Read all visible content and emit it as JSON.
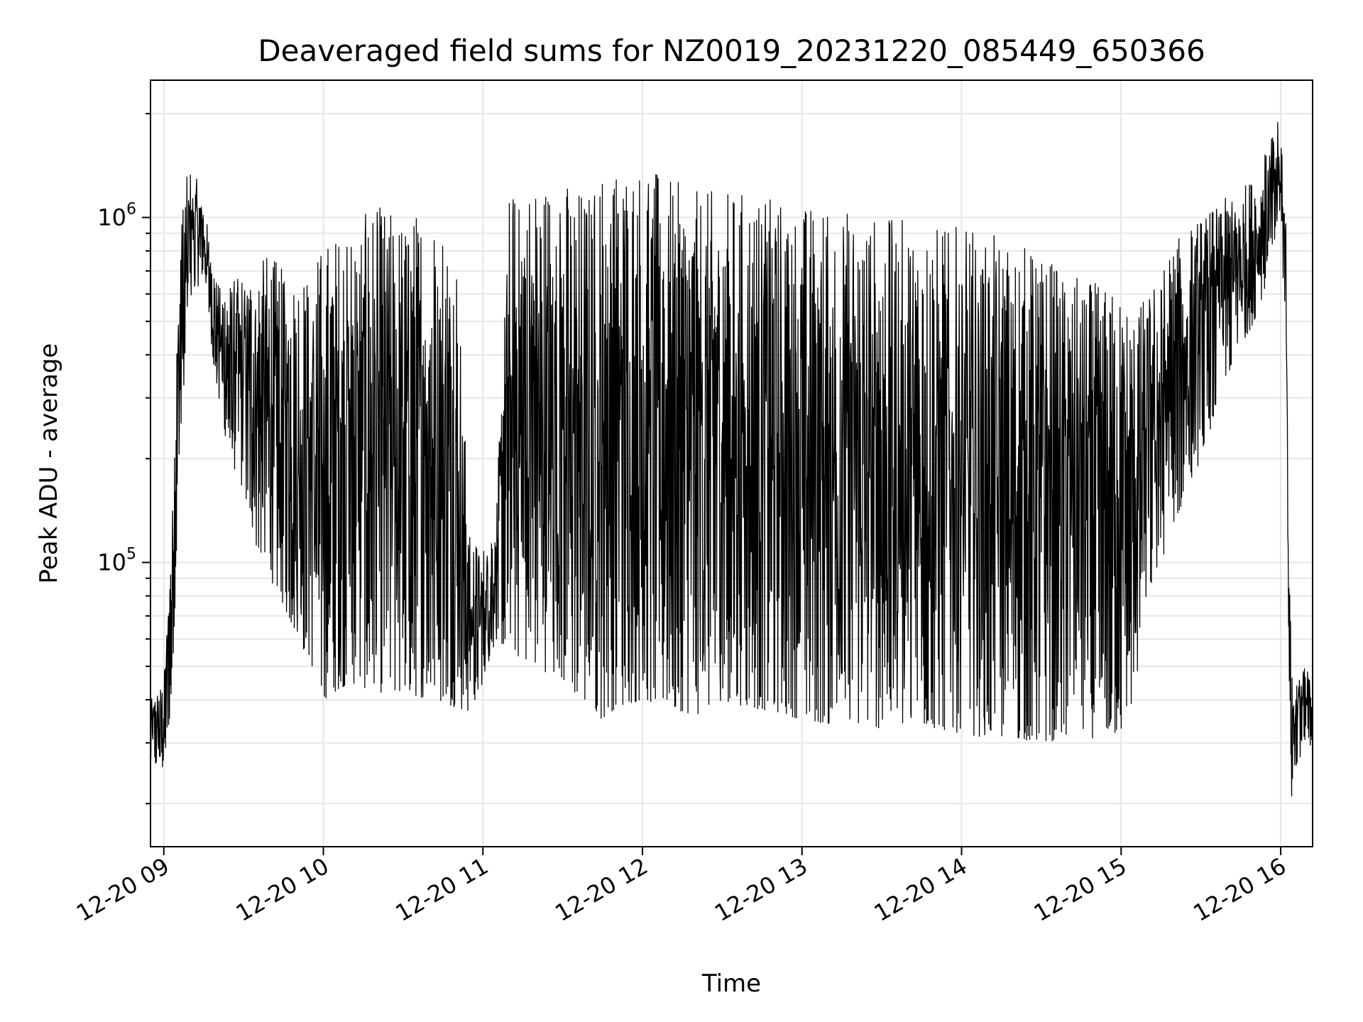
{
  "chart_data": {
    "type": "line",
    "title": "Deaveraged field sums for NZ0019_20231220_085449_650366",
    "xlabel": "Time",
    "ylabel": "Peak ADU - average",
    "yscale": "log",
    "grid": true,
    "line_color": "#000000",
    "grid_color": "#e6e6e6",
    "xlim": [
      "2023-12-20 08:55",
      "2023-12-20 16:12"
    ],
    "ylim": [
      15000,
      2500000
    ],
    "x_ticks": [
      {
        "value": "2023-12-20 09:00",
        "label": "12-20 09"
      },
      {
        "value": "2023-12-20 10:00",
        "label": "12-20 10"
      },
      {
        "value": "2023-12-20 11:00",
        "label": "12-20 11"
      },
      {
        "value": "2023-12-20 12:00",
        "label": "12-20 12"
      },
      {
        "value": "2023-12-20 13:00",
        "label": "12-20 13"
      },
      {
        "value": "2023-12-20 14:00",
        "label": "12-20 14"
      },
      {
        "value": "2023-12-20 15:00",
        "label": "12-20 15"
      },
      {
        "value": "2023-12-20 16:00",
        "label": "12-20 16"
      }
    ],
    "y_ticks": [
      {
        "value": 100000,
        "base": "10",
        "exp": "5"
      },
      {
        "value": 1000000,
        "base": "10",
        "exp": "6"
      }
    ],
    "series": [
      {
        "envelope": {
          "time": [
            "08:55",
            "09:00",
            "09:03",
            "09:06",
            "09:10",
            "09:15",
            "09:20",
            "09:25",
            "09:30",
            "09:35",
            "09:40",
            "09:45",
            "09:50",
            "09:55",
            "10:00",
            "10:10",
            "10:20",
            "10:30",
            "10:40",
            "10:50",
            "10:55",
            "11:00",
            "11:05",
            "11:10",
            "11:20",
            "11:30",
            "11:40",
            "11:45",
            "11:50",
            "12:00",
            "12:10",
            "12:20",
            "12:30",
            "12:40",
            "12:50",
            "13:00",
            "13:10",
            "13:20",
            "13:30",
            "13:40",
            "13:50",
            "14:00",
            "14:10",
            "14:20",
            "14:30",
            "14:40",
            "14:50",
            "15:00",
            "15:05",
            "15:10",
            "15:15",
            "15:20",
            "15:30",
            "15:40",
            "15:50",
            "15:55",
            "16:00",
            "16:02",
            "16:03",
            "16:04",
            "16:05",
            "16:08",
            "16:12"
          ],
          "min": [
            26000,
            25000,
            40000,
            190000,
            550000,
            700000,
            300000,
            200000,
            160000,
            110000,
            90000,
            75000,
            60000,
            52000,
            40000,
            45000,
            42000,
            42000,
            40000,
            38000,
            37000,
            45000,
            60000,
            55000,
            50000,
            45000,
            38000,
            35000,
            38000,
            40000,
            38000,
            36000,
            40000,
            38000,
            37000,
            35000,
            34000,
            34000,
            33000,
            33000,
            33000,
            32000,
            31000,
            31000,
            30000,
            31000,
            31000,
            32000,
            40000,
            80000,
            100000,
            130000,
            200000,
            350000,
            500000,
            650000,
            850000,
            500000,
            60000,
            20000,
            25000,
            28000,
            30000
          ],
          "max": [
            40000,
            45000,
            130000,
            1000000,
            1500000,
            1100000,
            650000,
            650000,
            700000,
            750000,
            800000,
            700000,
            750000,
            700000,
            850000,
            950000,
            1100000,
            1000000,
            1100000,
            900000,
            120000,
            110000,
            140000,
            1200000,
            1300000,
            1300000,
            1200000,
            1400000,
            1500000,
            1450000,
            1300000,
            1200000,
            1200000,
            1200000,
            1150000,
            1100000,
            1100000,
            1050000,
            1000000,
            1000000,
            950000,
            950000,
            900000,
            850000,
            800000,
            700000,
            650000,
            600000,
            550000,
            600000,
            700000,
            850000,
            1000000,
            1150000,
            1300000,
            1600000,
            2000000,
            1000000,
            100000,
            60000,
            45000,
            50000,
            48000
          ]
        }
      }
    ]
  }
}
